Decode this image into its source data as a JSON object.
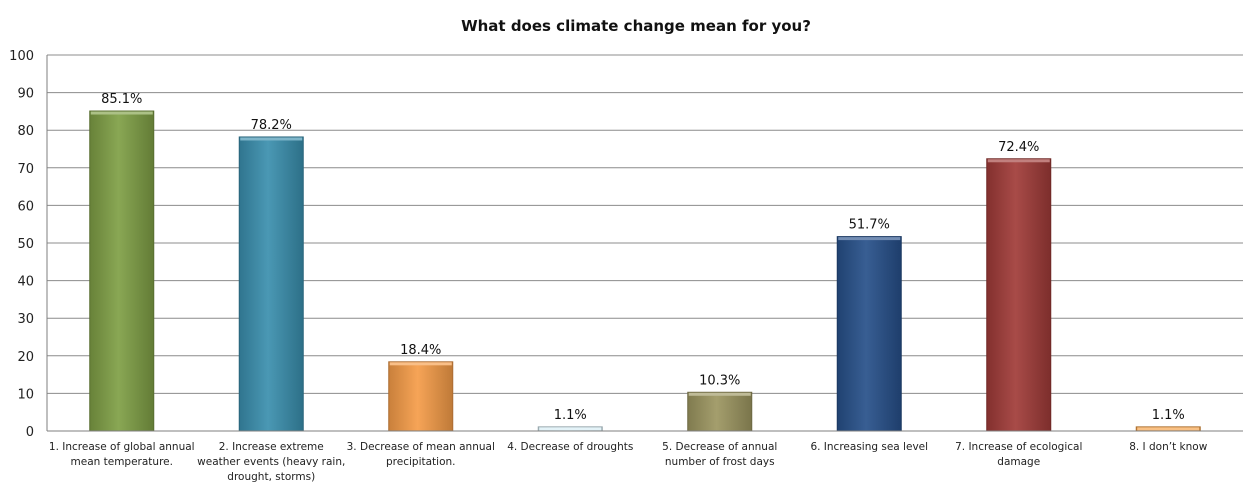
{
  "chart_data": {
    "type": "bar",
    "title": "What does climate change mean for you?",
    "ylim": [
      0,
      100
    ],
    "yticks": [
      0,
      10,
      20,
      30,
      40,
      50,
      60,
      70,
      80,
      90,
      100
    ],
    "grid": true,
    "categories": [
      [
        "1. Increase of global annual",
        "mean temperature."
      ],
      [
        "2. Increase extreme",
        "weather events (heavy rain,",
        "drought, storms)"
      ],
      [
        "3. Decrease of mean annual",
        "precipitation."
      ],
      [
        "4. Decrease of droughts"
      ],
      [
        "5. Decrease of annual",
        "number of frost days"
      ],
      [
        "6. Increasing sea level"
      ],
      [
        "7. Increase of ecological",
        "damage"
      ],
      [
        "8. I don’t know"
      ]
    ],
    "values": [
      85.1,
      78.2,
      18.4,
      1.1,
      10.3,
      51.7,
      72.4,
      1.1
    ],
    "data_labels": [
      "85.1%",
      "78.2%",
      "18.4%",
      "1.1%",
      "10.3%",
      "51.7%",
      "72.4%",
      "1.1%"
    ],
    "colors": [
      "#7f9f45",
      "#3a8fae",
      "#f59c48",
      "#d6ecf4",
      "#9c9660",
      "#27508a",
      "#a03b38",
      "#f5a044"
    ]
  }
}
